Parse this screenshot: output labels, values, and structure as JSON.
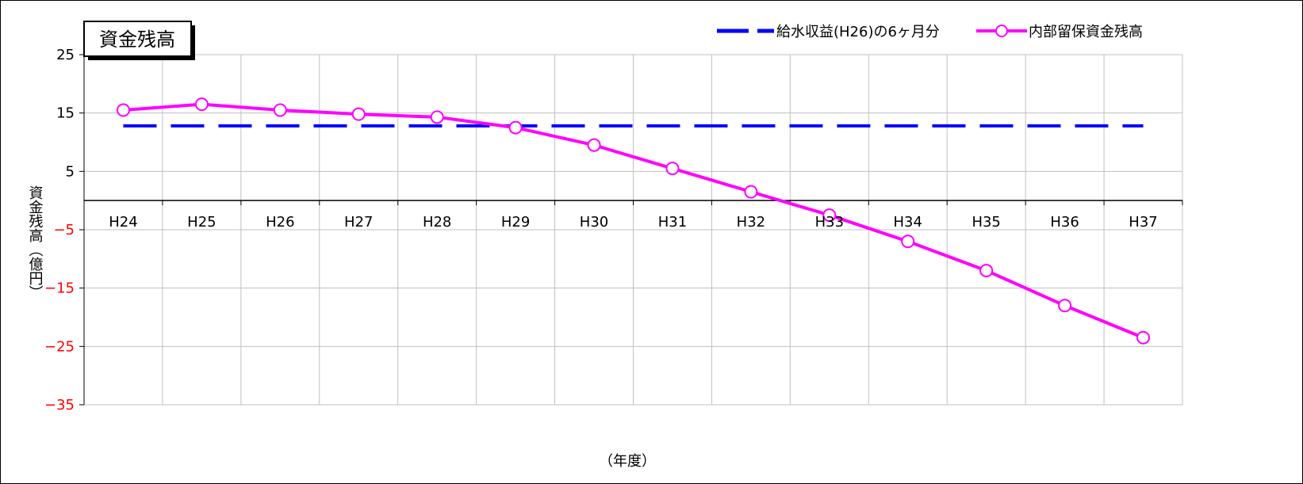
{
  "chart_data": {
    "type": "line",
    "title": "資金残高",
    "xlabel": "（年度）",
    "ylabel": "資金残高（億円）",
    "categories": [
      "H24",
      "H25",
      "H26",
      "H27",
      "H28",
      "H29",
      "H30",
      "H31",
      "H32",
      "H33",
      "H34",
      "H35",
      "H36",
      "H37"
    ],
    "ylim": [
      -35,
      25
    ],
    "yticks": [
      25,
      15,
      5,
      -5,
      -15,
      -25,
      -35
    ],
    "negative_tick_color": "#ff0000",
    "grid": true,
    "legend_position": "top-right",
    "series": [
      {
        "name": "給水収益(H26)の6ヶ月分",
        "style": "dashed",
        "color": "#0000ff",
        "values": [
          12.8,
          12.8,
          12.8,
          12.8,
          12.8,
          12.8,
          12.8,
          12.8,
          12.8,
          12.8,
          12.8,
          12.8,
          12.8,
          12.8
        ]
      },
      {
        "name": "内部留保資金残高",
        "style": "solid-circle-markers",
        "color": "#ff00ff",
        "values": [
          15.5,
          16.5,
          15.5,
          14.8,
          14.3,
          12.5,
          9.5,
          5.5,
          1.5,
          -2.5,
          -7,
          -12,
          -18,
          -23.5
        ]
      }
    ]
  }
}
